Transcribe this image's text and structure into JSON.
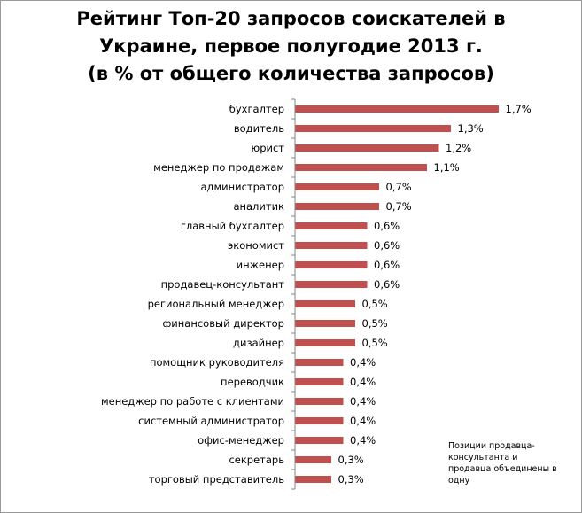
{
  "chart_data": {
    "type": "bar",
    "orientation": "horizontal",
    "title_lines": [
      "Рейтинг Топ-20 запросов соискателей в",
      "Украине, первое полугодие 2013 г.",
      "(в % от общего количества запросов)"
    ],
    "categories": [
      "бухгалтер",
      "водитель",
      "юрист",
      "менеджер по продажам",
      "администратор",
      "аналитик",
      "главный бухгалтер",
      "экономист",
      "инженер",
      "продавец-консультант",
      "региональный менеджер",
      "финансовый директор",
      "дизайнер",
      "помощник руководителя",
      "переводчик",
      "менеджер по работе с клиентами",
      "системный администратор",
      "офис-менеджер",
      "секретарь",
      "торговый представитель"
    ],
    "values": [
      1.7,
      1.3,
      1.2,
      1.1,
      0.7,
      0.7,
      0.6,
      0.6,
      0.6,
      0.6,
      0.5,
      0.5,
      0.5,
      0.4,
      0.4,
      0.4,
      0.4,
      0.4,
      0.3,
      0.3
    ],
    "value_labels": [
      "1,7%",
      "1,3%",
      "1,2%",
      "1,1%",
      "0,7%",
      "0,7%",
      "0,6%",
      "0,6%",
      "0,6%",
      "0,6%",
      "0,5%",
      "0,5%",
      "0,5%",
      "0,4%",
      "0,4%",
      "0,4%",
      "0,4%",
      "0,4%",
      "0,3%",
      "0,3%"
    ],
    "unit": "%",
    "xlim": [
      0,
      1.8
    ],
    "bar_color": "#c0504d",
    "grid": false,
    "legend": "none"
  },
  "note_lines": [
    "Позиции продавца-",
    "консультанта и",
    "продавца объединены в",
    "одну"
  ]
}
